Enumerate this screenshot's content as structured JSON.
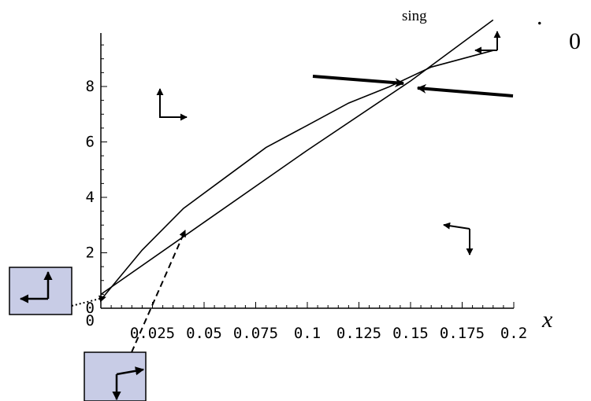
{
  "chart_data": {
    "type": "line",
    "x_axis_label": "x",
    "top_labels": [
      "sing",
      ".",
      "0"
    ],
    "y_ticks": [
      {
        "value": 0,
        "label": "0"
      },
      {
        "value": 2,
        "label": "2"
      },
      {
        "value": 4,
        "label": "4"
      },
      {
        "value": 6,
        "label": "6"
      },
      {
        "value": 8,
        "label": "8"
      }
    ],
    "x_ticks": [
      {
        "value": 0.025,
        "label": "0.025"
      },
      {
        "value": 0.05,
        "label": "0.05"
      },
      {
        "value": 0.075,
        "label": "0.075"
      },
      {
        "value": 0.1,
        "label": "0.1"
      },
      {
        "value": 0.125,
        "label": "0.125"
      },
      {
        "value": 0.15,
        "label": "0.15"
      },
      {
        "value": 0.175,
        "label": "0.175"
      },
      {
        "value": 0.2,
        "label": "0.2"
      }
    ],
    "xlim": [
      0,
      0.2
    ],
    "ylim": [
      0,
      9.5
    ],
    "series": [
      {
        "x": [
          0.0,
          0.02,
          0.04,
          0.06,
          0.08,
          0.1,
          0.12,
          0.14,
          0.16,
          0.19
        ],
        "y": [
          0.3,
          2.1,
          3.6,
          4.7,
          5.8,
          6.6,
          7.4,
          8.0,
          8.7,
          9.3
        ]
      },
      {
        "x": [
          0.0,
          0.05,
          0.1,
          0.15,
          0.19
        ],
        "y": [
          0.5,
          3.1,
          5.7,
          8.2,
          10.4
        ]
      }
    ]
  }
}
